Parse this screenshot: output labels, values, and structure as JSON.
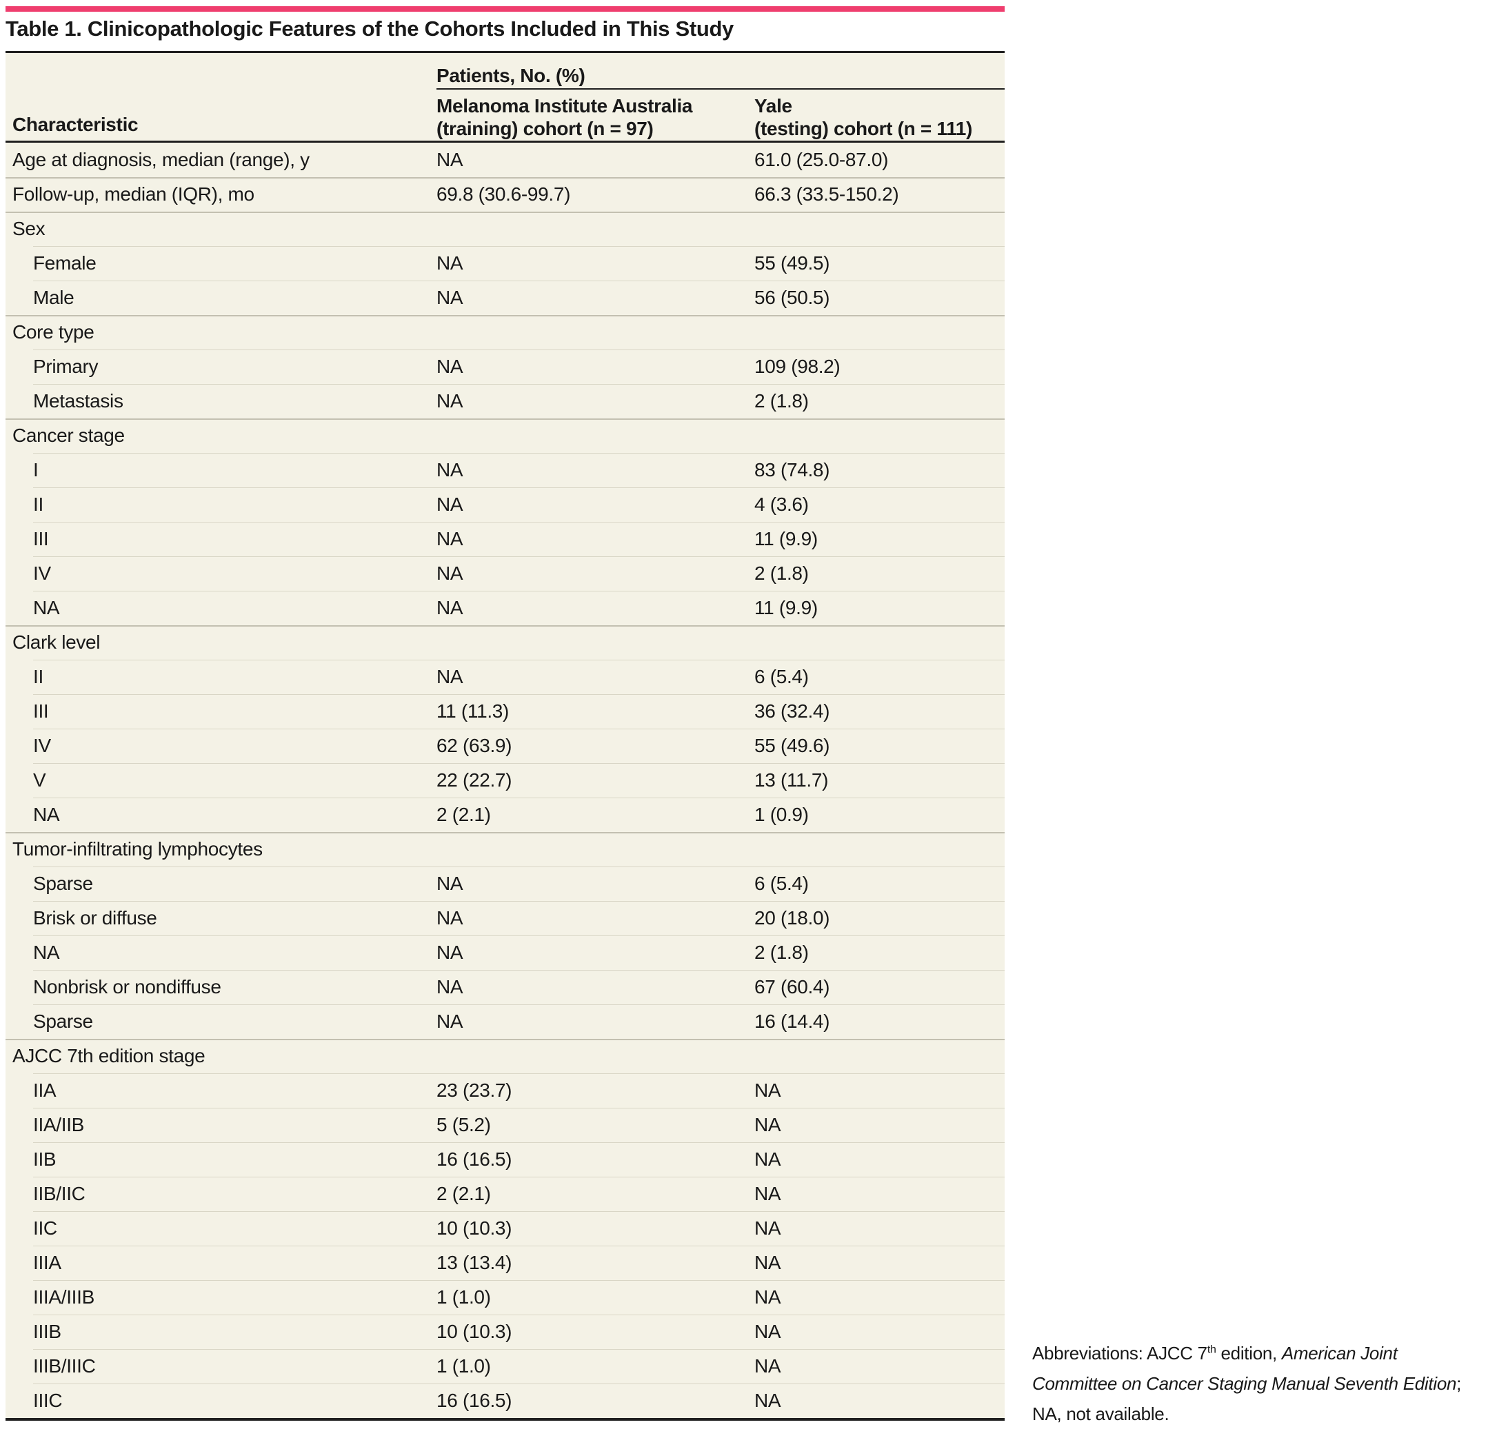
{
  "colors": {
    "accent": "#ef3e6e",
    "table_background": "#f4f2e6",
    "rule_dark": "#1f1f1f",
    "separator_full": "#c3c0b1",
    "separator_sub": "#d9d6c6"
  },
  "title": "Table 1. Clinicopathologic Features of the Cohorts Included in This Study",
  "table": {
    "group_header": "Patients, No. (%)",
    "characteristic_header": "Characteristic",
    "col_mia_line1": "Melanoma Institute Australia",
    "col_mia_line2": "(training) cohort (n = 97)",
    "col_yale_line1": "Yale",
    "col_yale_line2": "(testing) cohort (n = 111)",
    "rows": [
      {
        "type": "top",
        "label": "Age at diagnosis, median (range), y",
        "mia": "NA",
        "yale": "61.0 (25.0-87.0)"
      },
      {
        "type": "top",
        "label": "Follow-up, median (IQR), mo",
        "mia": "69.8 (30.6-99.7)",
        "yale": "66.3 (33.5-150.2)"
      },
      {
        "type": "section",
        "label": "Sex",
        "mia": "",
        "yale": ""
      },
      {
        "type": "sub",
        "label": "Female",
        "mia": "NA",
        "yale": "55 (49.5)"
      },
      {
        "type": "sub",
        "label": "Male",
        "mia": "NA",
        "yale": "56 (50.5)"
      },
      {
        "type": "section",
        "label": "Core type",
        "mia": "",
        "yale": ""
      },
      {
        "type": "sub",
        "label": "Primary",
        "mia": "NA",
        "yale": "109 (98.2)"
      },
      {
        "type": "sub",
        "label": "Metastasis",
        "mia": "NA",
        "yale": "2 (1.8)"
      },
      {
        "type": "section",
        "label": "Cancer stage",
        "mia": "",
        "yale": ""
      },
      {
        "type": "sub",
        "label": "I",
        "mia": "NA",
        "yale": "83 (74.8)"
      },
      {
        "type": "sub",
        "label": "II",
        "mia": "NA",
        "yale": "4 (3.6)"
      },
      {
        "type": "sub",
        "label": "III",
        "mia": "NA",
        "yale": "11 (9.9)"
      },
      {
        "type": "sub",
        "label": "IV",
        "mia": "NA",
        "yale": "2 (1.8)"
      },
      {
        "type": "sub",
        "label": "NA",
        "mia": "NA",
        "yale": "11 (9.9)"
      },
      {
        "type": "section",
        "label": "Clark level",
        "mia": "",
        "yale": ""
      },
      {
        "type": "sub",
        "label": "II",
        "mia": "NA",
        "yale": "6 (5.4)"
      },
      {
        "type": "sub",
        "label": "III",
        "mia": "11 (11.3)",
        "yale": "36 (32.4)"
      },
      {
        "type": "sub",
        "label": "IV",
        "mia": "62 (63.9)",
        "yale": "55 (49.6)"
      },
      {
        "type": "sub",
        "label": "V",
        "mia": "22 (22.7)",
        "yale": "13 (11.7)"
      },
      {
        "type": "sub",
        "label": "NA",
        "mia": "2 (2.1)",
        "yale": "1 (0.9)"
      },
      {
        "type": "section",
        "label": "Tumor-infiltrating lymphocytes",
        "mia": "",
        "yale": ""
      },
      {
        "type": "sub",
        "label": "Sparse",
        "mia": "NA",
        "yale": "6 (5.4)"
      },
      {
        "type": "sub",
        "label": "Brisk or diffuse",
        "mia": "NA",
        "yale": "20 (18.0)"
      },
      {
        "type": "sub",
        "label": "NA",
        "mia": "NA",
        "yale": "2 (1.8)"
      },
      {
        "type": "sub",
        "label": "Nonbrisk or nondiffuse",
        "mia": "NA",
        "yale": "67 (60.4)"
      },
      {
        "type": "sub",
        "label": "Sparse",
        "mia": "NA",
        "yale": "16 (14.4)"
      },
      {
        "type": "section",
        "label": "AJCC 7th edition stage",
        "mia": "",
        "yale": ""
      },
      {
        "type": "sub",
        "label": "IIA",
        "mia": "23 (23.7)",
        "yale": "NA"
      },
      {
        "type": "sub",
        "label": "IIA/IIB",
        "mia": "5 (5.2)",
        "yale": "NA"
      },
      {
        "type": "sub",
        "label": "IIB",
        "mia": "16 (16.5)",
        "yale": "NA"
      },
      {
        "type": "sub",
        "label": "IIB/IIC",
        "mia": "2 (2.1)",
        "yale": "NA"
      },
      {
        "type": "sub",
        "label": "IIC",
        "mia": "10 (10.3)",
        "yale": "NA"
      },
      {
        "type": "sub",
        "label": "IIIA",
        "mia": "13 (13.4)",
        "yale": "NA"
      },
      {
        "type": "sub",
        "label": "IIIA/IIIB",
        "mia": "1 (1.0)",
        "yale": "NA"
      },
      {
        "type": "sub",
        "label": "IIIB",
        "mia": "10 (10.3)",
        "yale": "NA"
      },
      {
        "type": "sub",
        "label": "IIIB/IIIC",
        "mia": "1 (1.0)",
        "yale": "NA"
      },
      {
        "type": "sub",
        "label": "IIIC",
        "mia": "16 (16.5)",
        "yale": "NA"
      }
    ]
  },
  "footnote": {
    "part1": "Abbreviations: AJCC 7",
    "superscript": "th",
    "part2": " edition, ",
    "italic": "American Joint Committee on Cancer Staging Manual Seventh Edition",
    "part3": "; NA, not available."
  }
}
